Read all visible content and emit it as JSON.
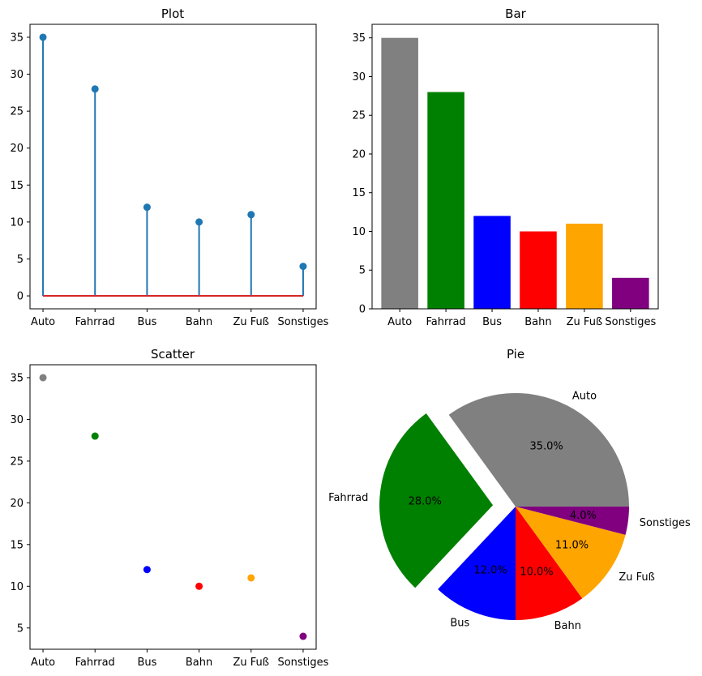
{
  "figure": {
    "categories": [
      "Auto",
      "Fahrrad",
      "Bus",
      "Bahn",
      "Zu Fuß",
      "Sonstiges"
    ],
    "values": [
      35,
      28,
      12,
      10,
      11,
      4
    ],
    "colors": [
      "#808080",
      "#008000",
      "#0000ff",
      "#ff0000",
      "#ffa500",
      "#800080"
    ]
  },
  "chart_data": [
    {
      "type": "stem",
      "title": "Plot",
      "categories": [
        "Auto",
        "Fahrrad",
        "Bus",
        "Bahn",
        "Zu Fuß",
        "Sonstiges"
      ],
      "values": [
        35,
        28,
        12,
        10,
        11,
        4
      ],
      "yticks": [
        0,
        5,
        10,
        15,
        20,
        25,
        30,
        35
      ],
      "ylim": [
        -1.75,
        36.75
      ],
      "stem_color": "#1f77b4",
      "baseline_color": "#d62728"
    },
    {
      "type": "bar",
      "title": "Bar",
      "categories": [
        "Auto",
        "Fahrrad",
        "Bus",
        "Bahn",
        "Zu Fuß",
        "Sonstiges"
      ],
      "values": [
        35,
        28,
        12,
        10,
        11,
        4
      ],
      "colors": [
        "#808080",
        "#008000",
        "#0000ff",
        "#ff0000",
        "#ffa500",
        "#800080"
      ],
      "yticks": [
        0,
        5,
        10,
        15,
        20,
        25,
        30,
        35
      ],
      "ylim": [
        0,
        36.75
      ]
    },
    {
      "type": "scatter",
      "title": "Scatter",
      "categories": [
        "Auto",
        "Fahrrad",
        "Bus",
        "Bahn",
        "Zu Fuß",
        "Sonstiges"
      ],
      "values": [
        35,
        28,
        12,
        10,
        11,
        4
      ],
      "colors": [
        "#808080",
        "#008000",
        "#0000ff",
        "#ff0000",
        "#ffa500",
        "#800080"
      ],
      "yticks": [
        5,
        10,
        15,
        20,
        25,
        30,
        35
      ],
      "ylim": [
        2.45,
        36.55
      ]
    },
    {
      "type": "pie",
      "title": "Pie",
      "labels": [
        "Auto",
        "Fahrrad",
        "Bus",
        "Bahn",
        "Zu Fuß",
        "Sonstiges"
      ],
      "values": [
        35,
        28,
        12,
        10,
        11,
        4
      ],
      "percent_labels": [
        "35.0%",
        "28.0%",
        "12.0%",
        "10.0%",
        "11.0%",
        "4.0%"
      ],
      "colors": [
        "#808080",
        "#008000",
        "#0000ff",
        "#ff0000",
        "#ffa500",
        "#800080"
      ],
      "explode": [
        0,
        0.2,
        0,
        0,
        0,
        0
      ],
      "start_angle_deg": 0,
      "direction": "counterclockwise"
    }
  ]
}
